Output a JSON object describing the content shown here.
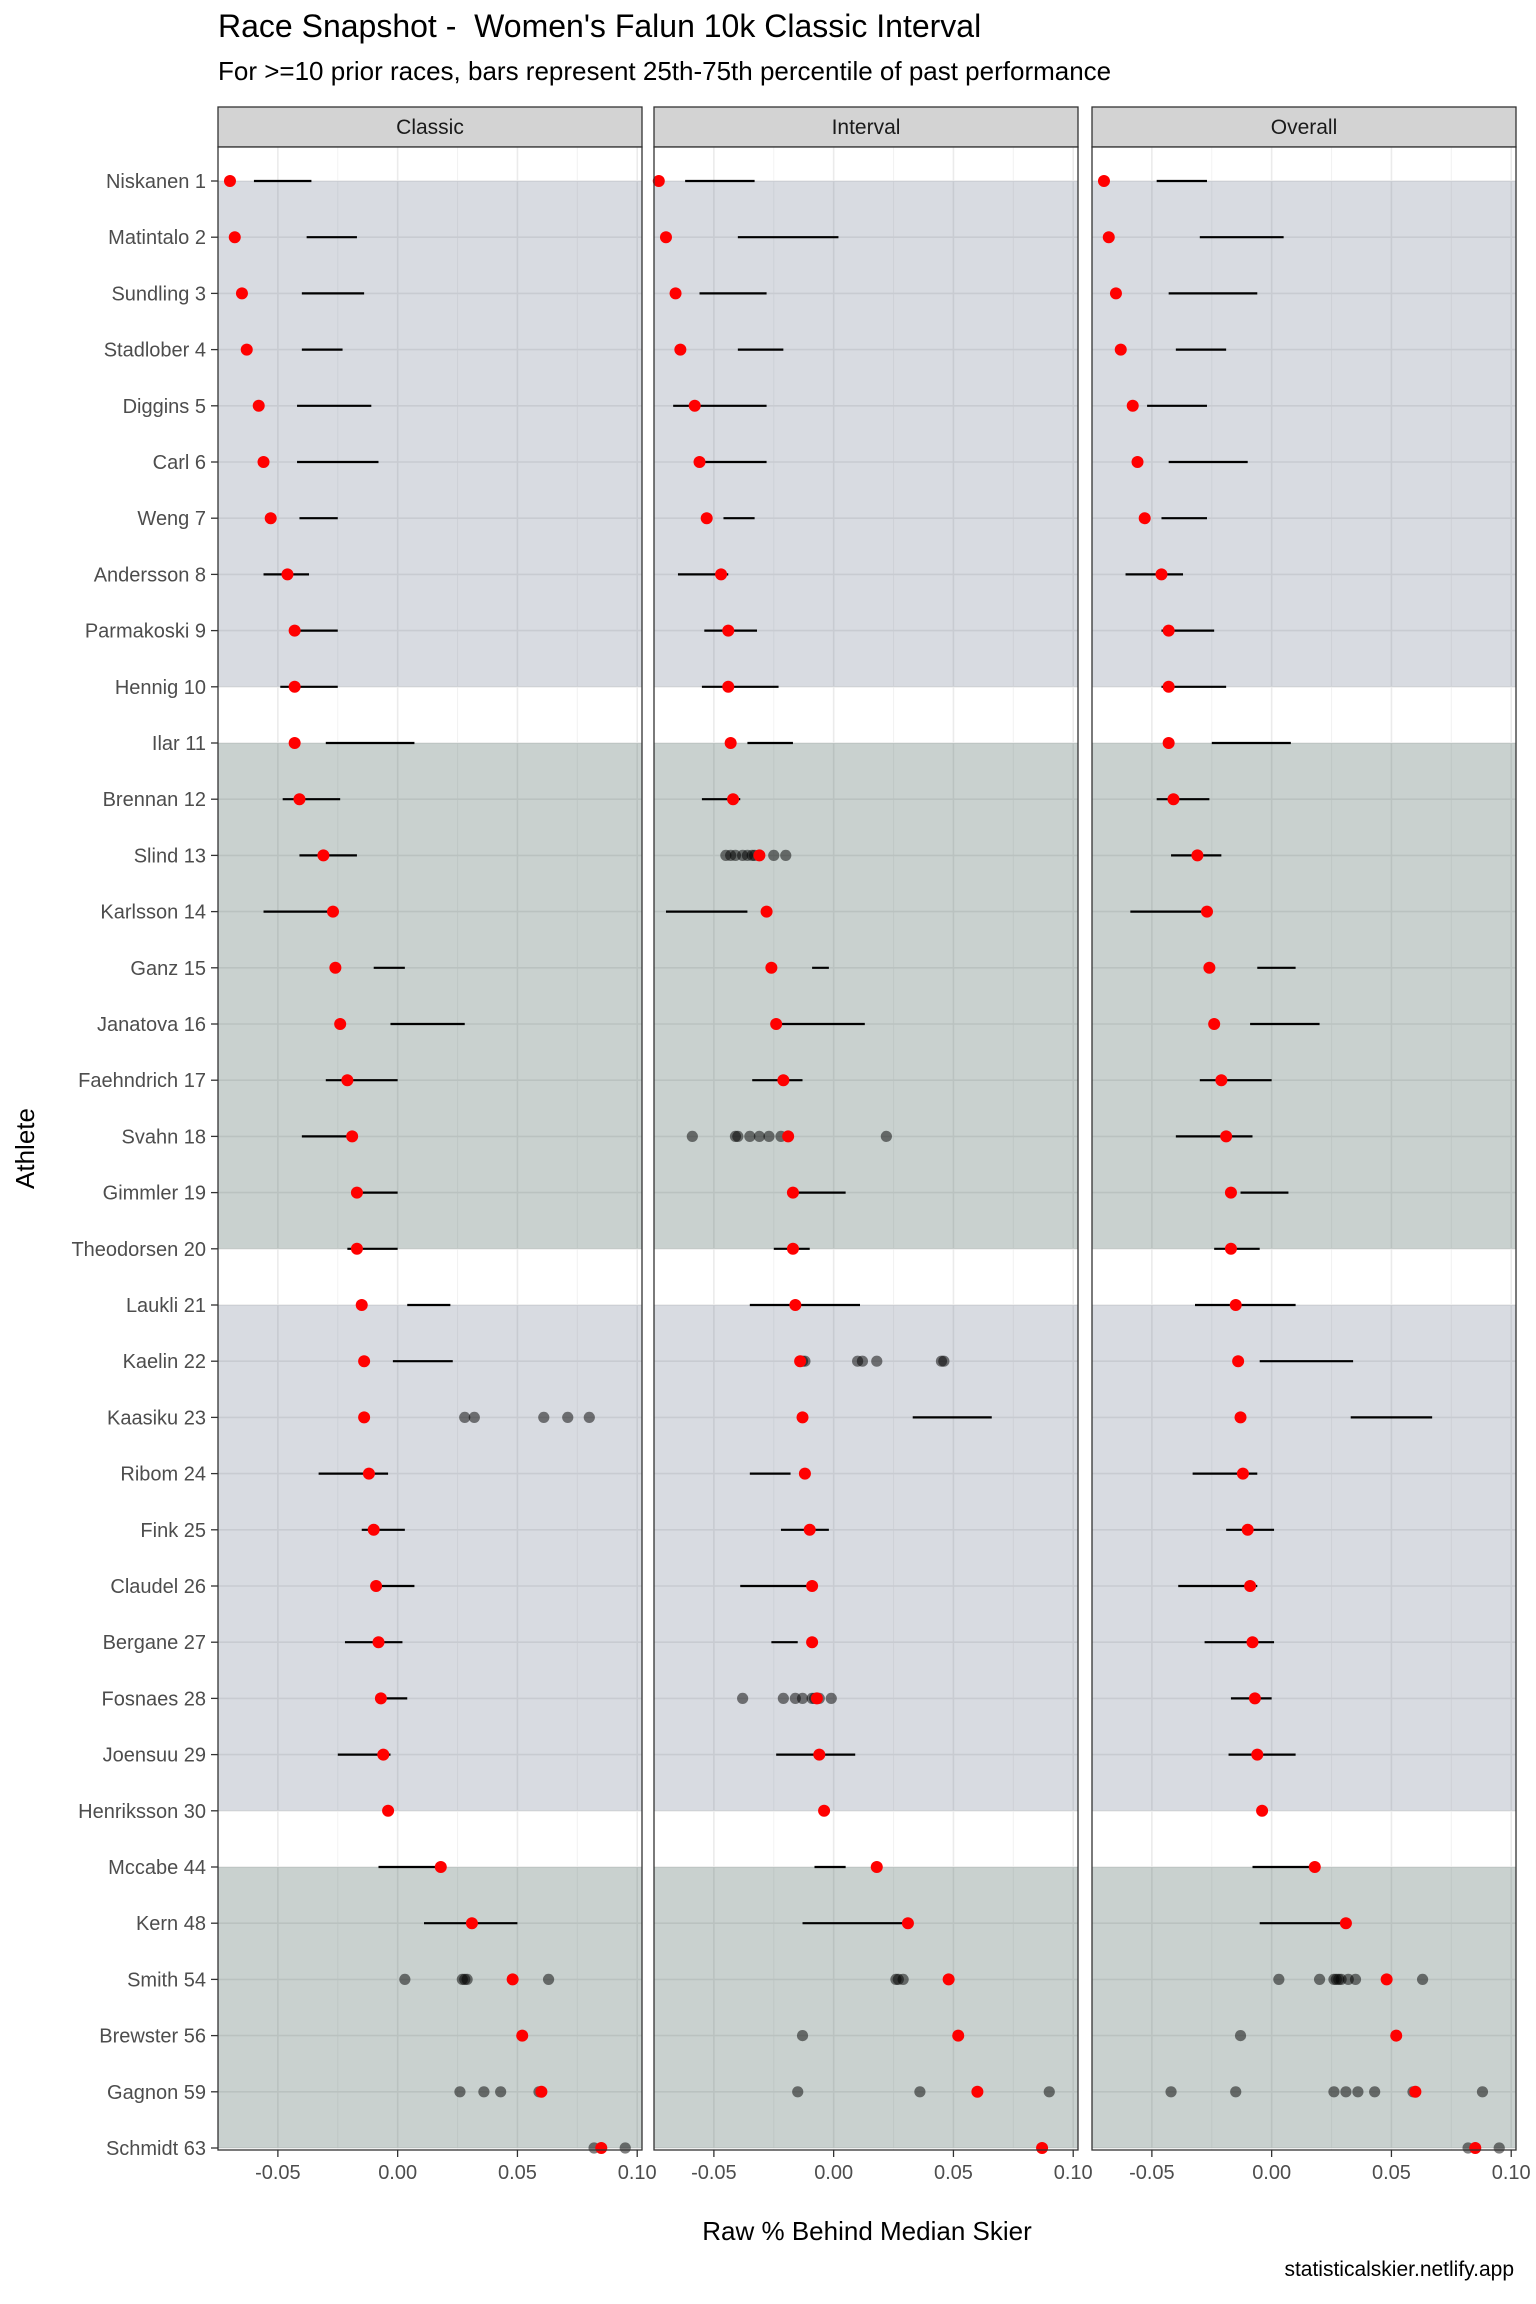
{
  "chart_data": {
    "type": "scatter",
    "title": "Race Snapshot -  Women's Falun 10k Classic Interval",
    "subtitle": "For >=10 prior races, bars represent 25th-75th percentile of past performance",
    "xlabel": "Raw % Behind Median Skier",
    "ylabel": "Athlete",
    "caption": "statisticalskier.netlify.app",
    "xlim": [
      -0.075,
      0.102
    ],
    "x_ticks": [
      -0.05,
      0.0,
      0.05,
      0.1
    ],
    "x_tick_labels": [
      "-0.05",
      "0.00",
      "0.05",
      "0.10"
    ],
    "grid": true,
    "panels": [
      "Classic",
      "Interval",
      "Overall"
    ],
    "colors": {
      "current_point": "#ff0000",
      "past_point": "#000000",
      "band_light": "#d8dbe0",
      "band_dark": "#c8d0cd",
      "strip": "#d3d3d3",
      "grid": "#ebebeb"
    },
    "bands": [
      {
        "from": 1,
        "to": 10,
        "shade": "light"
      },
      {
        "from": 11,
        "to": 20,
        "shade": "dark"
      },
      {
        "from": 21,
        "to": 30,
        "shade": "light"
      },
      {
        "from": 31,
        "to": 36,
        "shade": "dark"
      }
    ],
    "athletes": [
      {
        "label": "Niskanen 1",
        "Classic": {
          "cur": -0.07,
          "iqr": [
            -0.06,
            -0.036
          ]
        },
        "Interval": {
          "cur": -0.073,
          "iqr": [
            -0.062,
            -0.033
          ]
        },
        "Overall": {
          "cur": -0.07,
          "iqr": [
            -0.048,
            -0.027
          ]
        }
      },
      {
        "label": "Matintalo 2",
        "Classic": {
          "cur": -0.068,
          "iqr": [
            -0.038,
            -0.017
          ]
        },
        "Interval": {
          "cur": -0.07,
          "iqr": [
            -0.04,
            0.002
          ]
        },
        "Overall": {
          "cur": -0.068,
          "iqr": [
            -0.03,
            0.005
          ]
        }
      },
      {
        "label": "Sundling 3",
        "Classic": {
          "cur": -0.065,
          "iqr": [
            -0.04,
            -0.014
          ]
        },
        "Interval": {
          "cur": -0.066,
          "iqr": [
            -0.056,
            -0.028
          ]
        },
        "Overall": {
          "cur": -0.065,
          "iqr": [
            -0.043,
            -0.006
          ]
        }
      },
      {
        "label": "Stadlober 4",
        "Classic": {
          "cur": -0.063,
          "iqr": [
            -0.04,
            -0.023
          ]
        },
        "Interval": {
          "cur": -0.064,
          "iqr": [
            -0.04,
            -0.021
          ]
        },
        "Overall": {
          "cur": -0.063,
          "iqr": [
            -0.04,
            -0.019
          ]
        }
      },
      {
        "label": "Diggins 5",
        "Classic": {
          "cur": -0.058,
          "iqr": [
            -0.042,
            -0.011
          ]
        },
        "Interval": {
          "cur": -0.058,
          "iqr": [
            -0.067,
            -0.028
          ]
        },
        "Overall": {
          "cur": -0.058,
          "iqr": [
            -0.052,
            -0.027
          ]
        }
      },
      {
        "label": "Carl 6",
        "Classic": {
          "cur": -0.056,
          "iqr": [
            -0.042,
            -0.008
          ]
        },
        "Interval": {
          "cur": -0.056,
          "iqr": [
            -0.054,
            -0.028
          ]
        },
        "Overall": {
          "cur": -0.056,
          "iqr": [
            -0.043,
            -0.01
          ]
        }
      },
      {
        "label": "Weng 7",
        "Classic": {
          "cur": -0.053,
          "iqr": [
            -0.041,
            -0.025
          ]
        },
        "Interval": {
          "cur": -0.053,
          "iqr": [
            -0.046,
            -0.033
          ]
        },
        "Overall": {
          "cur": -0.053,
          "iqr": [
            -0.046,
            -0.027
          ]
        }
      },
      {
        "label": "Andersson 8",
        "Classic": {
          "cur": -0.046,
          "iqr": [
            -0.056,
            -0.037
          ]
        },
        "Interval": {
          "cur": -0.047,
          "iqr": [
            -0.065,
            -0.044
          ]
        },
        "Overall": {
          "cur": -0.046,
          "iqr": [
            -0.061,
            -0.037
          ]
        }
      },
      {
        "label": "Parmakoski 9",
        "Classic": {
          "cur": -0.043,
          "iqr": [
            -0.043,
            -0.025
          ]
        },
        "Interval": {
          "cur": -0.044,
          "iqr": [
            -0.054,
            -0.032
          ]
        },
        "Overall": {
          "cur": -0.043,
          "iqr": [
            -0.046,
            -0.024
          ]
        }
      },
      {
        "label": "Hennig 10",
        "Classic": {
          "cur": -0.043,
          "iqr": [
            -0.049,
            -0.025
          ]
        },
        "Interval": {
          "cur": -0.044,
          "iqr": [
            -0.055,
            -0.023
          ]
        },
        "Overall": {
          "cur": -0.043,
          "iqr": [
            -0.046,
            -0.019
          ]
        }
      },
      {
        "label": "Ilar 11",
        "Classic": {
          "cur": -0.043,
          "iqr": [
            -0.03,
            0.007
          ]
        },
        "Interval": {
          "cur": -0.043,
          "iqr": [
            -0.036,
            -0.017
          ]
        },
        "Overall": {
          "cur": -0.043,
          "iqr": [
            -0.025,
            0.008
          ]
        }
      },
      {
        "label": "Brennan 12",
        "Classic": {
          "cur": -0.041,
          "iqr": [
            -0.048,
            -0.024
          ]
        },
        "Interval": {
          "cur": -0.042,
          "iqr": [
            -0.055,
            -0.039
          ]
        },
        "Overall": {
          "cur": -0.041,
          "iqr": [
            -0.048,
            -0.026
          ]
        }
      },
      {
        "label": "Slind 13",
        "Classic": {
          "cur": -0.031,
          "iqr": [
            -0.041,
            -0.017
          ]
        },
        "Interval": {
          "cur": -0.031,
          "past": [
            -0.045,
            -0.043,
            -0.041,
            -0.038,
            -0.036,
            -0.034,
            -0.033,
            -0.025,
            -0.02
          ]
        },
        "Overall": {
          "cur": -0.031,
          "iqr": [
            -0.042,
            -0.021
          ]
        }
      },
      {
        "label": "Karlsson 14",
        "Classic": {
          "cur": -0.027,
          "iqr": [
            -0.056,
            -0.029
          ]
        },
        "Interval": {
          "cur": -0.028,
          "iqr": [
            -0.07,
            -0.036
          ]
        },
        "Overall": {
          "cur": -0.027,
          "iqr": [
            -0.059,
            -0.028
          ]
        }
      },
      {
        "label": "Ganz 15",
        "Classic": {
          "cur": -0.026,
          "iqr": [
            -0.01,
            0.003
          ]
        },
        "Interval": {
          "cur": -0.026,
          "iqr": [
            -0.009,
            -0.002
          ]
        },
        "Overall": {
          "cur": -0.026,
          "iqr": [
            -0.006,
            0.01
          ]
        }
      },
      {
        "label": "Janatova 16",
        "Classic": {
          "cur": -0.024,
          "iqr": [
            -0.003,
            0.028
          ]
        },
        "Interval": {
          "cur": -0.024,
          "iqr": [
            -0.023,
            0.013
          ]
        },
        "Overall": {
          "cur": -0.024,
          "iqr": [
            -0.009,
            0.02
          ]
        }
      },
      {
        "label": "Faehndrich 17",
        "Classic": {
          "cur": -0.021,
          "iqr": [
            -0.03,
            0.0
          ]
        },
        "Interval": {
          "cur": -0.021,
          "iqr": [
            -0.034,
            -0.013
          ]
        },
        "Overall": {
          "cur": -0.021,
          "iqr": [
            -0.03,
            0.0
          ]
        }
      },
      {
        "label": "Svahn 18",
        "Classic": {
          "cur": -0.019,
          "iqr": [
            -0.04,
            -0.018
          ]
        },
        "Interval": {
          "cur": -0.019,
          "past": [
            -0.059,
            -0.041,
            -0.04,
            -0.035,
            -0.031,
            -0.027,
            -0.022,
            0.022
          ]
        },
        "Overall": {
          "cur": -0.019,
          "iqr": [
            -0.04,
            -0.008
          ]
        }
      },
      {
        "label": "Gimmler 19",
        "Classic": {
          "cur": -0.017,
          "iqr": [
            -0.019,
            0.0
          ]
        },
        "Interval": {
          "cur": -0.017,
          "iqr": [
            -0.018,
            0.005
          ]
        },
        "Overall": {
          "cur": -0.017,
          "iqr": [
            -0.013,
            0.007
          ]
        }
      },
      {
        "label": "Theodorsen 20",
        "Classic": {
          "cur": -0.017,
          "iqr": [
            -0.021,
            0.0
          ]
        },
        "Interval": {
          "cur": -0.017,
          "iqr": [
            -0.025,
            -0.01
          ]
        },
        "Overall": {
          "cur": -0.017,
          "iqr": [
            -0.024,
            -0.005
          ]
        }
      },
      {
        "label": "Laukli 21",
        "Classic": {
          "cur": -0.015,
          "iqr": [
            0.004,
            0.022
          ]
        },
        "Interval": {
          "cur": -0.016,
          "iqr": [
            -0.035,
            0.011
          ]
        },
        "Overall": {
          "cur": -0.015,
          "iqr": [
            -0.032,
            0.01
          ]
        }
      },
      {
        "label": "Kaelin 22",
        "Classic": {
          "cur": -0.014,
          "iqr": [
            -0.002,
            0.023
          ]
        },
        "Interval": {
          "cur": -0.014,
          "past": [
            -0.014,
            -0.013,
            -0.012,
            0.01,
            0.012,
            0.018,
            0.045,
            0.046
          ]
        },
        "Overall": {
          "cur": -0.014,
          "iqr": [
            -0.005,
            0.034
          ]
        }
      },
      {
        "label": "Kaasiku 23",
        "Classic": {
          "cur": -0.014,
          "past": [
            0.028,
            0.032,
            0.061,
            0.071,
            0.08
          ]
        },
        "Interval": {
          "cur": -0.013,
          "iqr": [
            0.033,
            0.066
          ]
        },
        "Overall": {
          "cur": -0.013,
          "iqr": [
            0.033,
            0.067
          ]
        }
      },
      {
        "label": "Ribom 24",
        "Classic": {
          "cur": -0.012,
          "iqr": [
            -0.033,
            -0.004
          ]
        },
        "Interval": {
          "cur": -0.012,
          "iqr": [
            -0.035,
            -0.018
          ]
        },
        "Overall": {
          "cur": -0.012,
          "iqr": [
            -0.033,
            -0.006
          ]
        }
      },
      {
        "label": "Fink 25",
        "Classic": {
          "cur": -0.01,
          "iqr": [
            -0.015,
            0.003
          ]
        },
        "Interval": {
          "cur": -0.01,
          "iqr": [
            -0.022,
            -0.002
          ]
        },
        "Overall": {
          "cur": -0.01,
          "iqr": [
            -0.019,
            0.001
          ]
        }
      },
      {
        "label": "Claudel 26",
        "Classic": {
          "cur": -0.009,
          "iqr": [
            -0.009,
            0.007
          ]
        },
        "Interval": {
          "cur": -0.009,
          "iqr": [
            -0.039,
            -0.01
          ]
        },
        "Overall": {
          "cur": -0.009,
          "iqr": [
            -0.039,
            -0.006
          ]
        }
      },
      {
        "label": "Bergane 27",
        "Classic": {
          "cur": -0.008,
          "iqr": [
            -0.022,
            0.002
          ]
        },
        "Interval": {
          "cur": -0.009,
          "iqr": [
            -0.026,
            -0.015
          ]
        },
        "Overall": {
          "cur": -0.008,
          "iqr": [
            -0.028,
            0.001
          ]
        }
      },
      {
        "label": "Fosnaes 28",
        "Classic": {
          "cur": -0.007,
          "iqr": [
            -0.008,
            0.004
          ]
        },
        "Interval": {
          "cur": -0.007,
          "past": [
            -0.038,
            -0.021,
            -0.016,
            -0.013,
            -0.009,
            -0.008,
            -0.006,
            -0.001
          ]
        },
        "Overall": {
          "cur": -0.007,
          "iqr": [
            -0.017,
            0.0
          ]
        }
      },
      {
        "label": "Joensuu 29",
        "Classic": {
          "cur": -0.006,
          "iqr": [
            -0.025,
            -0.003
          ]
        },
        "Interval": {
          "cur": -0.006,
          "iqr": [
            -0.024,
            0.009
          ]
        },
        "Overall": {
          "cur": -0.006,
          "iqr": [
            -0.018,
            0.01
          ]
        }
      },
      {
        "label": "Henriksson 30",
        "Classic": {
          "cur": -0.004,
          "iqr": null
        },
        "Interval": {
          "cur": -0.004,
          "iqr": null
        },
        "Overall": {
          "cur": -0.004,
          "iqr": null
        }
      },
      {
        "label": "Mccabe 44",
        "Classic": {
          "cur": 0.018,
          "iqr": [
            -0.008,
            0.018
          ]
        },
        "Interval": {
          "cur": 0.018,
          "iqr": [
            -0.008,
            0.005
          ]
        },
        "Overall": {
          "cur": 0.018,
          "iqr": [
            -0.008,
            0.018
          ]
        }
      },
      {
        "label": "Kern 48",
        "Classic": {
          "cur": 0.031,
          "iqr": [
            0.011,
            0.05
          ]
        },
        "Interval": {
          "cur": 0.031,
          "iqr": [
            -0.013,
            0.031
          ]
        },
        "Overall": {
          "cur": 0.031,
          "iqr": [
            -0.005,
            0.031
          ]
        }
      },
      {
        "label": "Smith 54",
        "Classic": {
          "cur": 0.048,
          "past": [
            0.003,
            0.027,
            0.028,
            0.029,
            0.063
          ]
        },
        "Interval": {
          "cur": 0.048,
          "past": [
            0.026,
            0.027,
            0.029
          ]
        },
        "Overall": {
          "cur": 0.048,
          "past": [
            0.003,
            0.02,
            0.026,
            0.027,
            0.028,
            0.029,
            0.032,
            0.035,
            0.063
          ]
        }
      },
      {
        "label": "Brewster 56",
        "Classic": {
          "cur": 0.052,
          "past": []
        },
        "Interval": {
          "cur": 0.052,
          "past": [
            -0.013
          ]
        },
        "Overall": {
          "cur": 0.052,
          "past": [
            -0.013
          ]
        }
      },
      {
        "label": "Gagnon 59",
        "Classic": {
          "cur": 0.06,
          "past": [
            0.026,
            0.036,
            0.043,
            0.059
          ]
        },
        "Interval": {
          "cur": 0.06,
          "past": [
            -0.015,
            0.036,
            0.09
          ]
        },
        "Overall": {
          "cur": 0.06,
          "past": [
            -0.042,
            -0.015,
            0.026,
            0.031,
            0.036,
            0.043,
            0.059,
            0.088
          ]
        }
      },
      {
        "label": "Schmidt 63",
        "Classic": {
          "cur": 0.085,
          "past": [
            0.082,
            0.095
          ]
        },
        "Interval": {
          "cur": 0.087,
          "past": []
        },
        "Overall": {
          "cur": 0.085,
          "past": [
            0.082,
            0.095
          ]
        }
      }
    ]
  }
}
